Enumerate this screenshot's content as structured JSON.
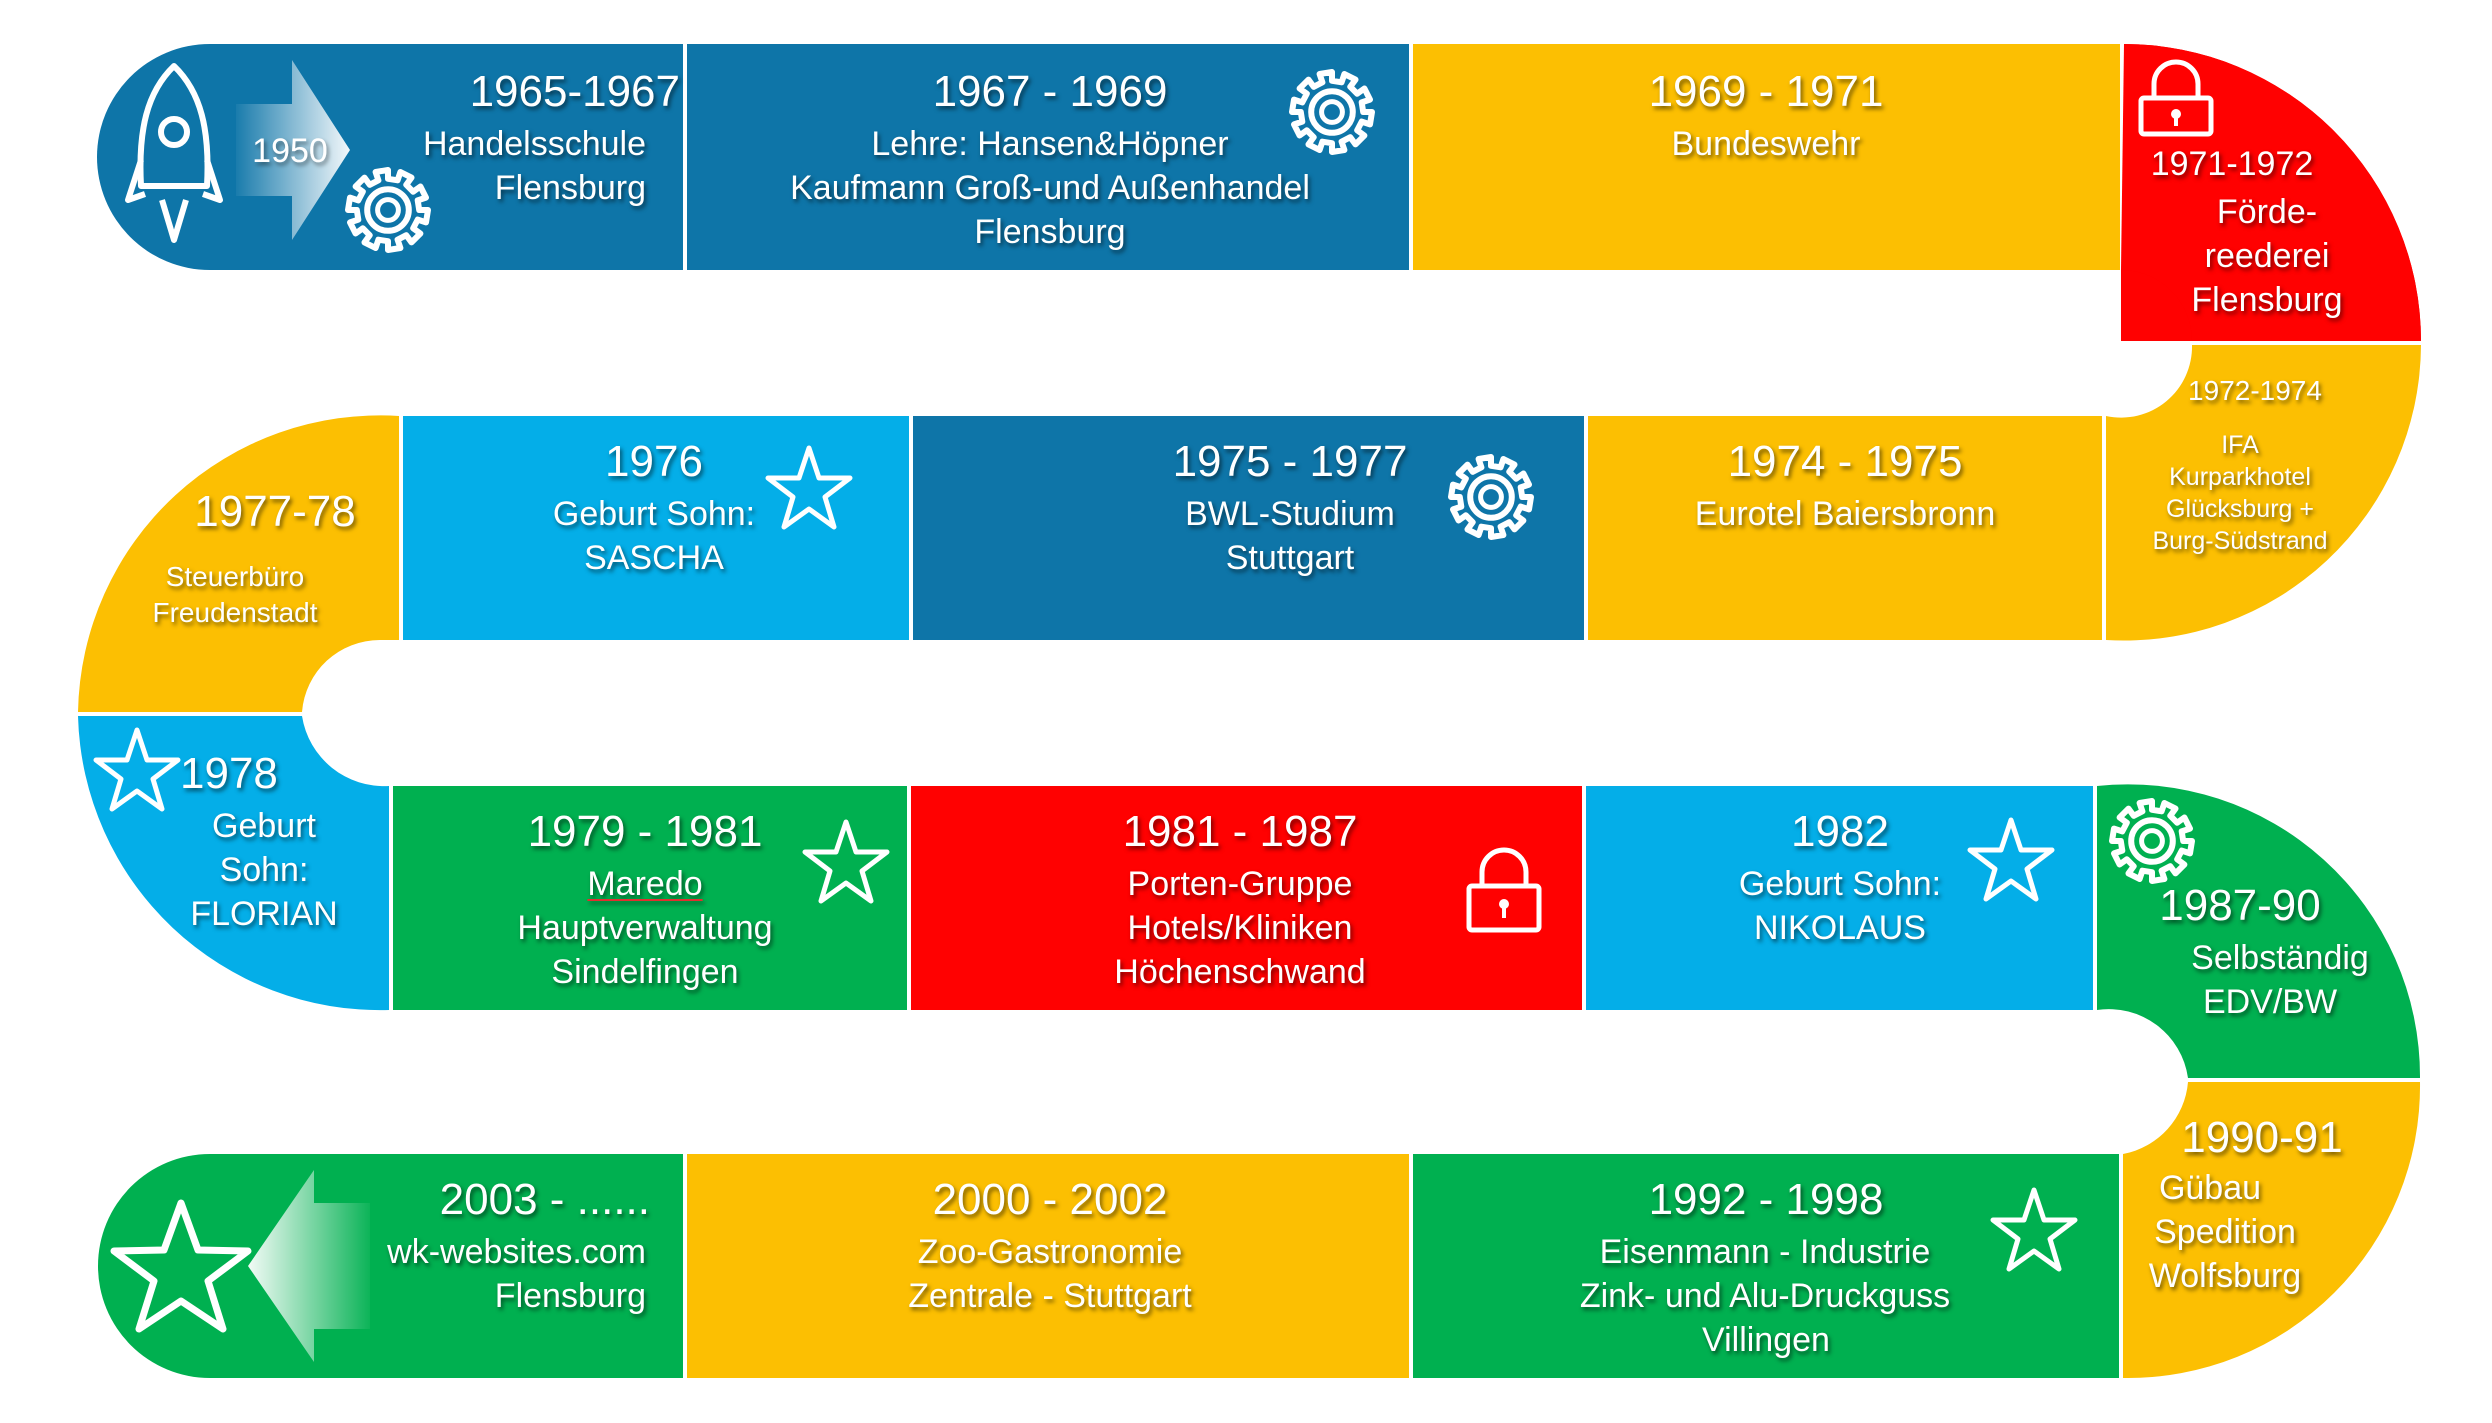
{
  "colors": {
    "dark_blue": "#0e75a8",
    "light_blue": "#04aee8",
    "yellow": "#fcbf02",
    "red": "#ff0101",
    "green": "#00b050"
  },
  "start": {
    "year": "1950",
    "icon": "rocket-icon"
  },
  "end": {
    "icon": "star-icon"
  },
  "segments": [
    {
      "id": "s1",
      "years": "1965-1967",
      "lines": [
        "Handelsschule",
        "Flensburg"
      ],
      "color": "dark_blue",
      "icon": "gear-icon"
    },
    {
      "id": "s2",
      "years": "1967 - 1969",
      "lines": [
        "Lehre: Hansen&Höpner",
        "Kaufmann Groß-und Außenhandel",
        "Flensburg"
      ],
      "color": "dark_blue",
      "icon": "gear-icon"
    },
    {
      "id": "s3",
      "years": "1969 - 1971",
      "lines": [
        "Bundeswehr"
      ],
      "color": "yellow",
      "icon": ""
    },
    {
      "id": "s4",
      "years": "1971-1972",
      "lines": [
        "Förde-",
        "reederei",
        "Flensburg"
      ],
      "color": "red",
      "icon": "lock-icon"
    },
    {
      "id": "s5",
      "years": "1972-1974",
      "lines": [
        "IFA",
        "Kurparkhotel",
        "Glücksburg +",
        "Burg-Südstrand"
      ],
      "color": "yellow",
      "icon": ""
    },
    {
      "id": "s6",
      "years": "1974 - 1975",
      "lines": [
        "Eurotel Baiersbronn"
      ],
      "color": "yellow",
      "icon": ""
    },
    {
      "id": "s7",
      "years": "1975 - 1977",
      "lines": [
        "BWL-Studium",
        "Stuttgart"
      ],
      "color": "dark_blue",
      "icon": "gear-icon"
    },
    {
      "id": "s8",
      "years": "1976",
      "lines": [
        "Geburt Sohn:",
        "SASCHA"
      ],
      "color": "light_blue",
      "icon": "star-icon"
    },
    {
      "id": "s9",
      "years": "1977-78",
      "lines": [
        "Steuerbüro",
        "Freudenstadt"
      ],
      "color": "yellow",
      "icon": ""
    },
    {
      "id": "s10",
      "years": "1978",
      "lines": [
        "Geburt",
        "Sohn:",
        "FLORIAN"
      ],
      "color": "light_blue",
      "icon": "star-icon"
    },
    {
      "id": "s11",
      "years": "1979 - 1981",
      "lines": [
        "Maredo",
        "Hauptverwaltung",
        "Sindelfingen"
      ],
      "color": "green",
      "icon": "star-icon"
    },
    {
      "id": "s12",
      "years": "1981 - 1987",
      "lines": [
        "Porten-Gruppe",
        "Hotels/Kliniken",
        "Höchenschwand"
      ],
      "color": "red",
      "icon": "lock-icon"
    },
    {
      "id": "s13",
      "years": "1982",
      "lines": [
        "Geburt Sohn:",
        "NIKOLAUS"
      ],
      "color": "light_blue",
      "icon": "star-icon"
    },
    {
      "id": "s14",
      "years": "1987-90",
      "lines": [
        "Selbständig",
        "EDV/BW"
      ],
      "color": "green",
      "icon": "gear-icon"
    },
    {
      "id": "s15",
      "years": "1990-91",
      "lines": [
        "Gübau",
        "Spedition",
        "Wolfsburg"
      ],
      "color": "yellow",
      "icon": ""
    },
    {
      "id": "s16",
      "years": "1992 - 1998",
      "lines": [
        "Eisenmann - Industrie",
        "Zink- und Alu-Druckguss",
        "Villingen"
      ],
      "color": "green",
      "icon": "star-icon"
    },
    {
      "id": "s17",
      "years": "2000 - 2002",
      "lines": [
        "Zoo-Gastronomie",
        "Zentrale - Stuttgart"
      ],
      "color": "yellow",
      "icon": ""
    },
    {
      "id": "s18",
      "years": "2003 - ......",
      "lines": [
        "wk-websites.com",
        "Flensburg"
      ],
      "color": "green",
      "icon": ""
    }
  ]
}
